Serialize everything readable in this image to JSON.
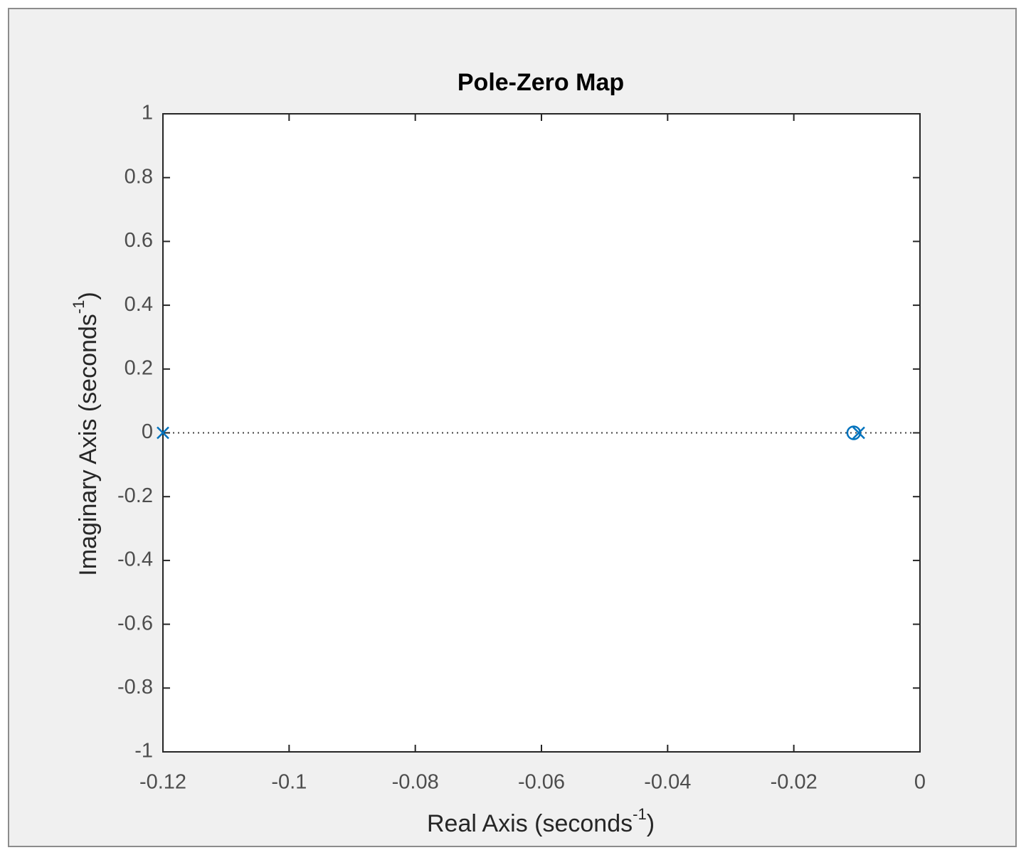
{
  "chart_data": {
    "type": "scatter",
    "title": "Pole-Zero Map",
    "xlabel": {
      "text": "Real Axis (seconds",
      "sup": "-1",
      "end": ")"
    },
    "ylabel": {
      "text": "Imaginary Axis (seconds",
      "sup": "-1",
      "end": ")"
    },
    "series": [
      {
        "marker": "x",
        "color": "#0072bd",
        "x": [
          -0.12,
          -0.0097
        ],
        "y": [
          0,
          0
        ]
      },
      {
        "marker": "o",
        "color": "#0072bd",
        "x": [
          -0.0105
        ],
        "y": [
          0
        ]
      }
    ],
    "xlim": [
      -0.12,
      0
    ],
    "xticks": [
      -0.12,
      -0.1,
      -0.08,
      -0.06,
      -0.04,
      -0.02,
      0
    ],
    "ylim": [
      -1,
      1
    ],
    "yticks": [
      -1,
      -0.8,
      -0.6,
      -0.4,
      -0.2,
      0,
      0.2,
      0.4,
      0.6,
      0.8,
      1
    ],
    "zero_line": true,
    "grid": false
  }
}
